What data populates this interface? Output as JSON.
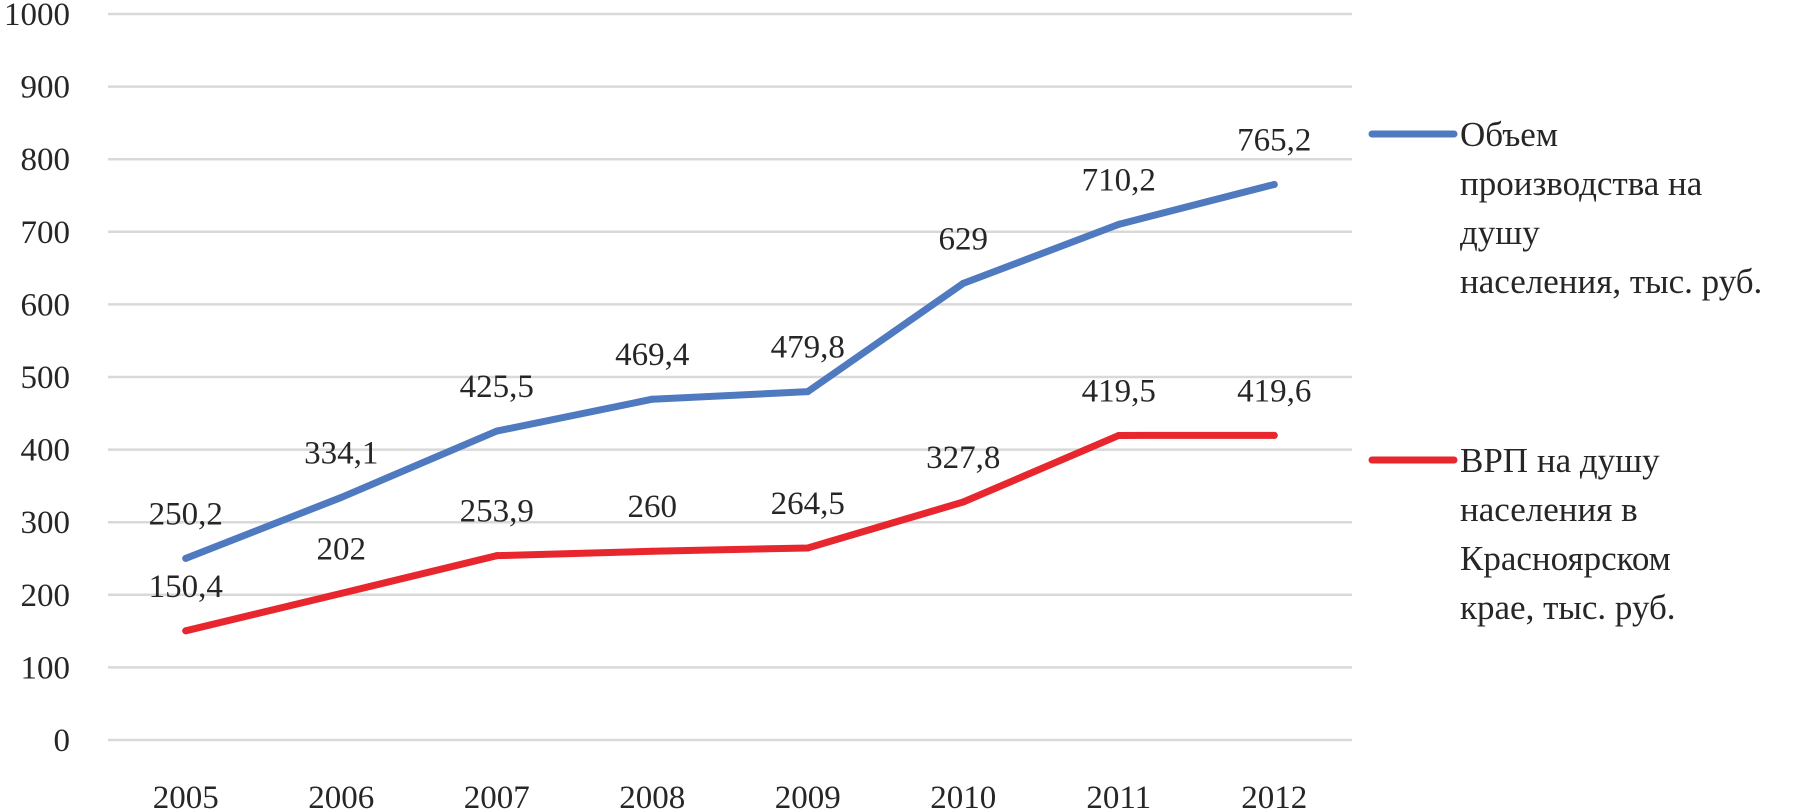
{
  "chart_data": {
    "type": "line",
    "title": "",
    "xlabel": "",
    "ylabel": "",
    "categories": [
      "2005",
      "2006",
      "2007",
      "2008",
      "2009",
      "2010",
      "2011",
      "2012"
    ],
    "ylim": [
      0,
      1000
    ],
    "yticks": [
      0,
      100,
      200,
      300,
      400,
      500,
      600,
      700,
      800,
      900,
      1000
    ],
    "grid": true,
    "legend_position": "right",
    "series": [
      {
        "name": "Объем производства на душу населения, тыс. руб.",
        "legend_lines": [
          "Объем",
          "производства на",
          "душу",
          "населения, тыс. руб."
        ],
        "color": "#4f7ac0",
        "values": [
          250.2,
          334.1,
          425.5,
          469.4,
          479.8,
          629,
          710.2,
          765.2
        ],
        "labels": [
          "250,2",
          "334,1",
          "425,5",
          "469,4",
          "479,8",
          "629",
          "710,2",
          "765,2"
        ]
      },
      {
        "name": "ВРП на душу населения в Красноярском крае, тыс. руб.",
        "legend_lines": [
          "ВРП на душу",
          "населения в",
          "Красноярском",
          "крае, тыс. руб."
        ],
        "color": "#e8262e",
        "values": [
          150.4,
          202,
          253.9,
          260,
          264.5,
          327.8,
          419.5,
          419.6
        ],
        "labels": [
          "150,4",
          "202",
          "253,9",
          "260",
          "264,5",
          "327,8",
          "419,5",
          "419,6"
        ]
      }
    ]
  }
}
